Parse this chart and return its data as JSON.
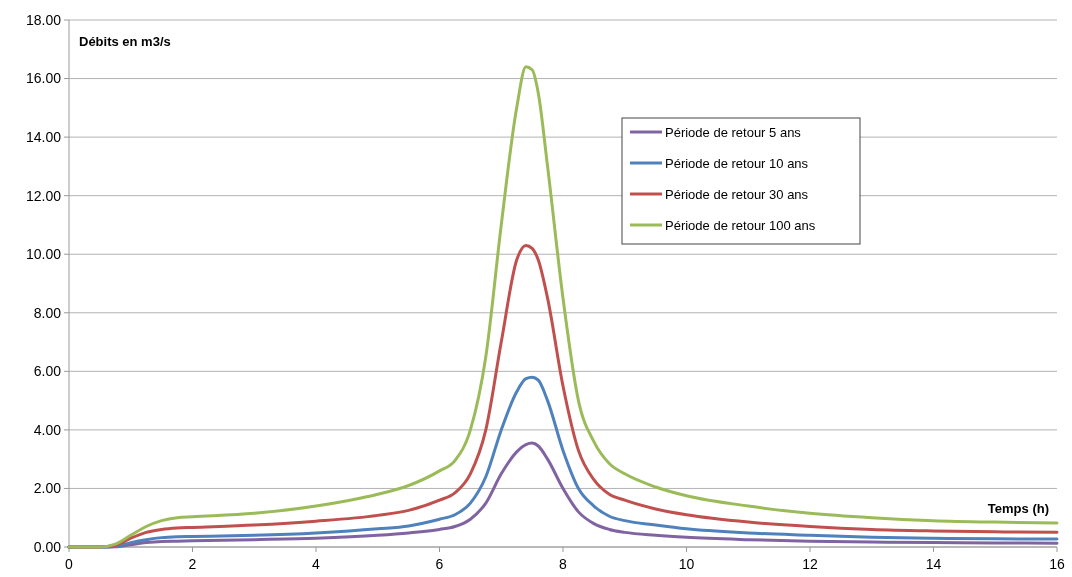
{
  "chart_data": {
    "type": "line",
    "xlabel": "Temps (h)",
    "ylabel": "Débits en m3/s",
    "x": [
      0,
      0.5,
      0.75,
      1,
      1.25,
      1.5,
      1.75,
      2,
      3,
      4,
      5,
      5.5,
      6,
      6.25,
      6.5,
      6.75,
      7,
      7.25,
      7.4,
      7.5,
      7.6,
      7.75,
      8,
      8.25,
      8.5,
      8.75,
      9,
      9.5,
      10,
      11,
      12,
      13,
      14,
      15,
      16
    ],
    "series": [
      {
        "name": "Période de retour 5 ans",
        "color": "#8064a2",
        "values": [
          0,
          0,
          0.01,
          0.08,
          0.15,
          0.19,
          0.2,
          0.21,
          0.25,
          0.3,
          0.4,
          0.48,
          0.6,
          0.7,
          0.95,
          1.5,
          2.5,
          3.25,
          3.5,
          3.55,
          3.45,
          3.0,
          2.0,
          1.2,
          0.8,
          0.6,
          0.5,
          0.4,
          0.33,
          0.25,
          0.2,
          0.17,
          0.15,
          0.14,
          0.13
        ]
      },
      {
        "name": "Période de retour 10 ans",
        "color": "#4f81bd",
        "values": [
          0,
          0,
          0.02,
          0.15,
          0.25,
          0.32,
          0.35,
          0.36,
          0.4,
          0.48,
          0.62,
          0.72,
          0.95,
          1.1,
          1.5,
          2.4,
          4.0,
          5.3,
          5.75,
          5.8,
          5.7,
          5.0,
          3.3,
          2.0,
          1.4,
          1.05,
          0.9,
          0.75,
          0.62,
          0.48,
          0.4,
          0.33,
          0.3,
          0.28,
          0.27
        ]
      },
      {
        "name": "Période de retour 30 ans",
        "color": "#c0504d",
        "values": [
          0,
          0,
          0.05,
          0.3,
          0.5,
          0.6,
          0.65,
          0.67,
          0.75,
          0.88,
          1.08,
          1.25,
          1.6,
          1.85,
          2.5,
          4.0,
          7,
          9.8,
          10.3,
          10.2,
          9.8,
          8.5,
          5.5,
          3.3,
          2.3,
          1.8,
          1.6,
          1.3,
          1.1,
          0.85,
          0.7,
          0.6,
          0.55,
          0.52,
          0.5
        ]
      },
      {
        "name": "Période de retour 100 ans",
        "color": "#9bbb59",
        "values": [
          0,
          0,
          0.1,
          0.4,
          0.7,
          0.9,
          1.0,
          1.03,
          1.15,
          1.4,
          1.8,
          2.1,
          2.6,
          2.95,
          4.0,
          6.5,
          11,
          15,
          16.4,
          16.3,
          15.5,
          13,
          8.5,
          5,
          3.6,
          2.85,
          2.5,
          2.05,
          1.75,
          1.4,
          1.15,
          1.0,
          0.9,
          0.85,
          0.82
        ]
      }
    ],
    "xlim": [
      0,
      16
    ],
    "xticks": [
      0,
      2,
      4,
      6,
      8,
      10,
      12,
      14,
      16
    ],
    "ylim": [
      0,
      18
    ],
    "yticks": [
      {
        "value": 0,
        "label": "0.00"
      },
      {
        "value": 2,
        "label": "2.00"
      },
      {
        "value": 4,
        "label": "4.00"
      },
      {
        "value": 6,
        "label": "6.00"
      },
      {
        "value": 8,
        "label": "8.00"
      },
      {
        "value": 10,
        "label": "10.00"
      },
      {
        "value": 12,
        "label": "12.00"
      },
      {
        "value": 14,
        "label": "14.00"
      },
      {
        "value": 16,
        "label": "16.00"
      },
      {
        "value": 18,
        "label": "18.00"
      }
    ],
    "grid": "y",
    "legend": "top right",
    "marker": "none",
    "line_style": "solid"
  }
}
